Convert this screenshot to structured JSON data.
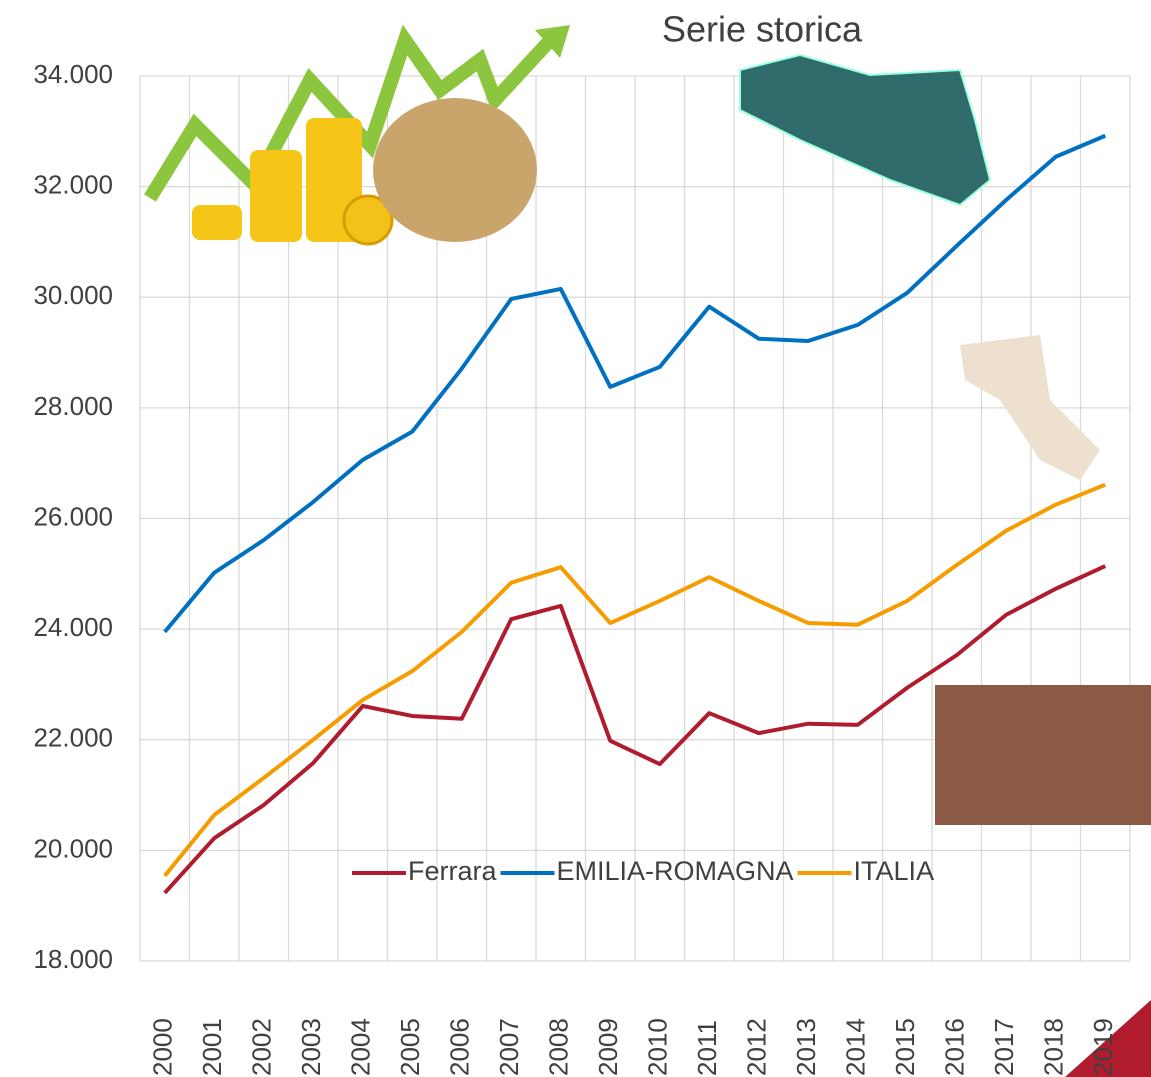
{
  "chart_data": {
    "type": "line",
    "title": "Serie storica",
    "categories": [
      "2000",
      "2001",
      "2002",
      "2003",
      "2004",
      "2005",
      "2006",
      "2007",
      "2008",
      "2009",
      "2010",
      "2011",
      "2012",
      "2013",
      "2014",
      "2015",
      "2016",
      "2017",
      "2018",
      "2019"
    ],
    "series": [
      {
        "name": "Ferrara",
        "color": "#b01c2e",
        "values": [
          19230,
          20220,
          20820,
          21580,
          22610,
          22430,
          22380,
          24180,
          24420,
          21980,
          21560,
          22480,
          22120,
          22290,
          22270,
          22940,
          23530,
          24260,
          24730,
          25140
        ]
      },
      {
        "name": "EMILIA-ROMAGNA",
        "color": "#0070c0",
        "values": [
          23950,
          25020,
          25610,
          26300,
          27060,
          27570,
          28710,
          29970,
          30150,
          28380,
          28740,
          29830,
          29250,
          29210,
          29500,
          30080,
          30930,
          31760,
          32540,
          32920
        ]
      },
      {
        "name": "ITALIA",
        "color": "#f59c00",
        "values": [
          19540,
          20640,
          21310,
          22000,
          22720,
          23240,
          23950,
          24840,
          25120,
          24110,
          24510,
          24940,
          24510,
          24110,
          24080,
          24510,
          25160,
          25780,
          26250,
          26610
        ]
      }
    ],
    "ylim": [
      18000,
      34000
    ],
    "yticks": [
      {
        "value": 18000,
        "label": "18.000"
      },
      {
        "value": 20000,
        "label": "20.000"
      },
      {
        "value": 22000,
        "label": "22.000"
      },
      {
        "value": 24000,
        "label": "24.000"
      },
      {
        "value": 26000,
        "label": "26.000"
      },
      {
        "value": 28000,
        "label": "28.000"
      },
      {
        "value": 30000,
        "label": "30.000"
      },
      {
        "value": 32000,
        "label": "32.000"
      },
      {
        "value": 34000,
        "label": "34.000"
      }
    ],
    "grid": true
  }
}
